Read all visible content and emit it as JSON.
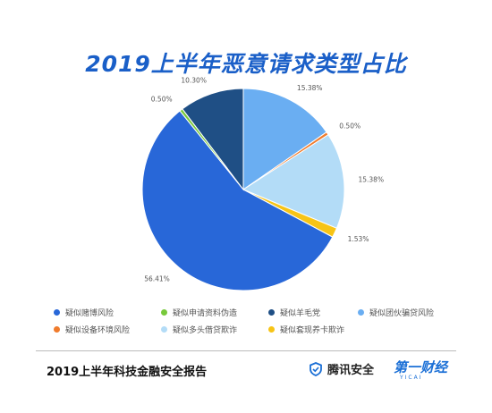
{
  "chart_data": {
    "type": "pie",
    "title": "2019上半年恶意请求类型占比",
    "slices": [
      {
        "label": "疑似团伙骗贷风险",
        "value": 15.38,
        "display": "15.38%",
        "color": "#6aaef2"
      },
      {
        "label": "疑似设备环境风险",
        "value": 0.5,
        "display": "0.50%",
        "color": "#f07b2c"
      },
      {
        "label": "疑似多头借贷欺诈",
        "value": 15.38,
        "display": "15.38%",
        "color": "#b3dcf7"
      },
      {
        "label": "疑似套现养卡欺诈",
        "value": 1.53,
        "display": "1.53%",
        "color": "#f7c416"
      },
      {
        "label": "疑似赌博风险",
        "value": 56.41,
        "display": "56.41%",
        "color": "#2867d8"
      },
      {
        "label": "疑似申请资料伪造",
        "value": 0.5,
        "display": "0.50%",
        "color": "#78c93b"
      },
      {
        "label": "疑似羊毛党",
        "value": 10.3,
        "display": "10.30%",
        "color": "#1f4f85"
      }
    ],
    "legend": [
      {
        "label": "疑似赌博风险",
        "color": "#2867d8"
      },
      {
        "label": "疑似申请资料伪造",
        "color": "#78c93b"
      },
      {
        "label": "疑似羊毛党",
        "color": "#1f4f85"
      },
      {
        "label": "疑似团伙骗贷风险",
        "color": "#6aaef2"
      },
      {
        "label": "疑似设备环境风险",
        "color": "#f07b2c"
      },
      {
        "label": "疑似多头借贷欺诈",
        "color": "#b3dcf7"
      },
      {
        "label": "疑似套现养卡欺诈",
        "color": "#f7c416"
      }
    ],
    "legend_position": "bottom"
  },
  "title_color": "#1a5fc8",
  "footer": {
    "report_title": "2019上半年科技金融安全报告",
    "brand1": "腾讯安全",
    "brand2": "第一财经",
    "brand2_sub": "YICAI"
  }
}
